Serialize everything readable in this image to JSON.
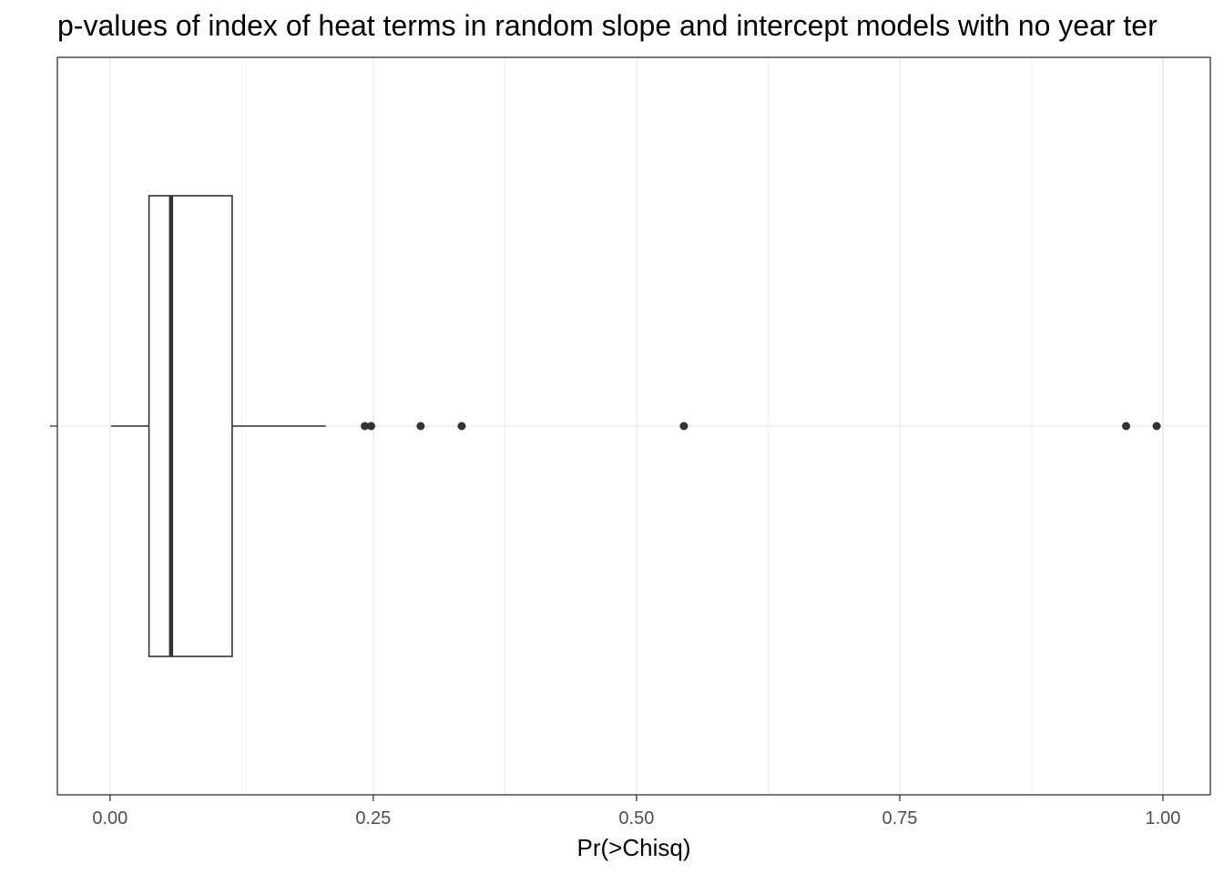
{
  "chart_data": {
    "type": "boxplot",
    "orientation": "horizontal",
    "title": "p-values of index of heat terms in random slope and intercept models with no year ter",
    "xlabel": "Pr(>Chisq)",
    "ylabel": "",
    "xlim": [
      -0.05,
      1.045
    ],
    "x_ticks": [
      0.0,
      0.25,
      0.5,
      0.75,
      1.0
    ],
    "x_tick_labels": [
      "0.00",
      "0.25",
      "0.50",
      "0.75",
      "1.00"
    ],
    "grid": true,
    "box": {
      "whisker_low": 0.001,
      "q1": 0.037,
      "median": 0.058,
      "q3": 0.116,
      "whisker_high": 0.205
    },
    "outliers": [
      0.242,
      0.248,
      0.295,
      0.334,
      0.545,
      0.965,
      0.994
    ],
    "colors": {
      "box_line": "#333333",
      "grid": "#ebebeb",
      "panel_border": "#333333",
      "tick_text": "#4d4d4d"
    }
  }
}
